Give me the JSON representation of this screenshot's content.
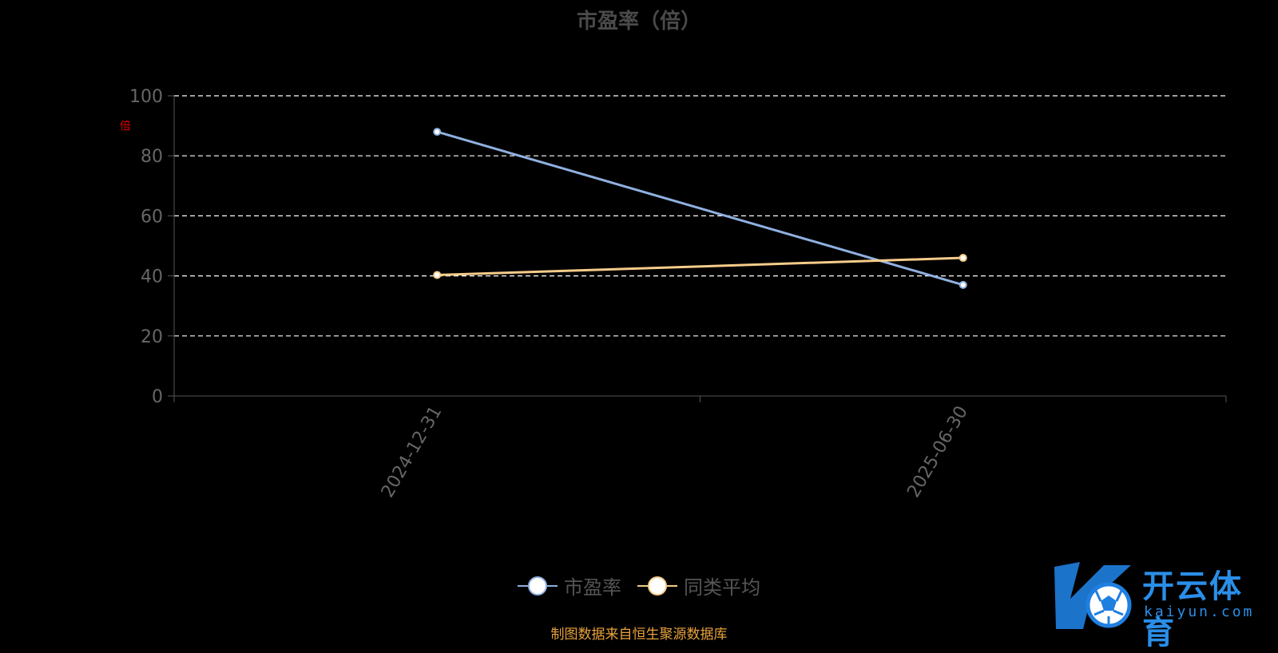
{
  "title": "市盈率（倍）",
  "y_unit_label": "倍",
  "legend": [
    {
      "label": "市盈率",
      "color": "#8fb0e0"
    },
    {
      "label": "同类平均",
      "color": "#f5cc8a"
    }
  ],
  "source_note": "制图数据来自恒生聚源数据库",
  "logo": {
    "cn": "开云体育",
    "en": "kaiyun.com"
  },
  "chart_data": {
    "type": "line",
    "title": "市盈率（倍）",
    "categories": [
      "2024-12-31",
      "2025-06-30"
    ],
    "series": [
      {
        "name": "市盈率",
        "values": [
          88,
          37
        ],
        "color": "#8fb0e0"
      },
      {
        "name": "同类平均",
        "values": [
          40.3,
          46
        ],
        "color": "#f5cc8a"
      }
    ],
    "y_ticks": [
      0,
      20,
      40,
      60,
      80,
      100
    ],
    "ylim": [
      0,
      100
    ],
    "xlabel": "",
    "ylabel": "倍",
    "grid": true,
    "legend_position": "bottom"
  }
}
